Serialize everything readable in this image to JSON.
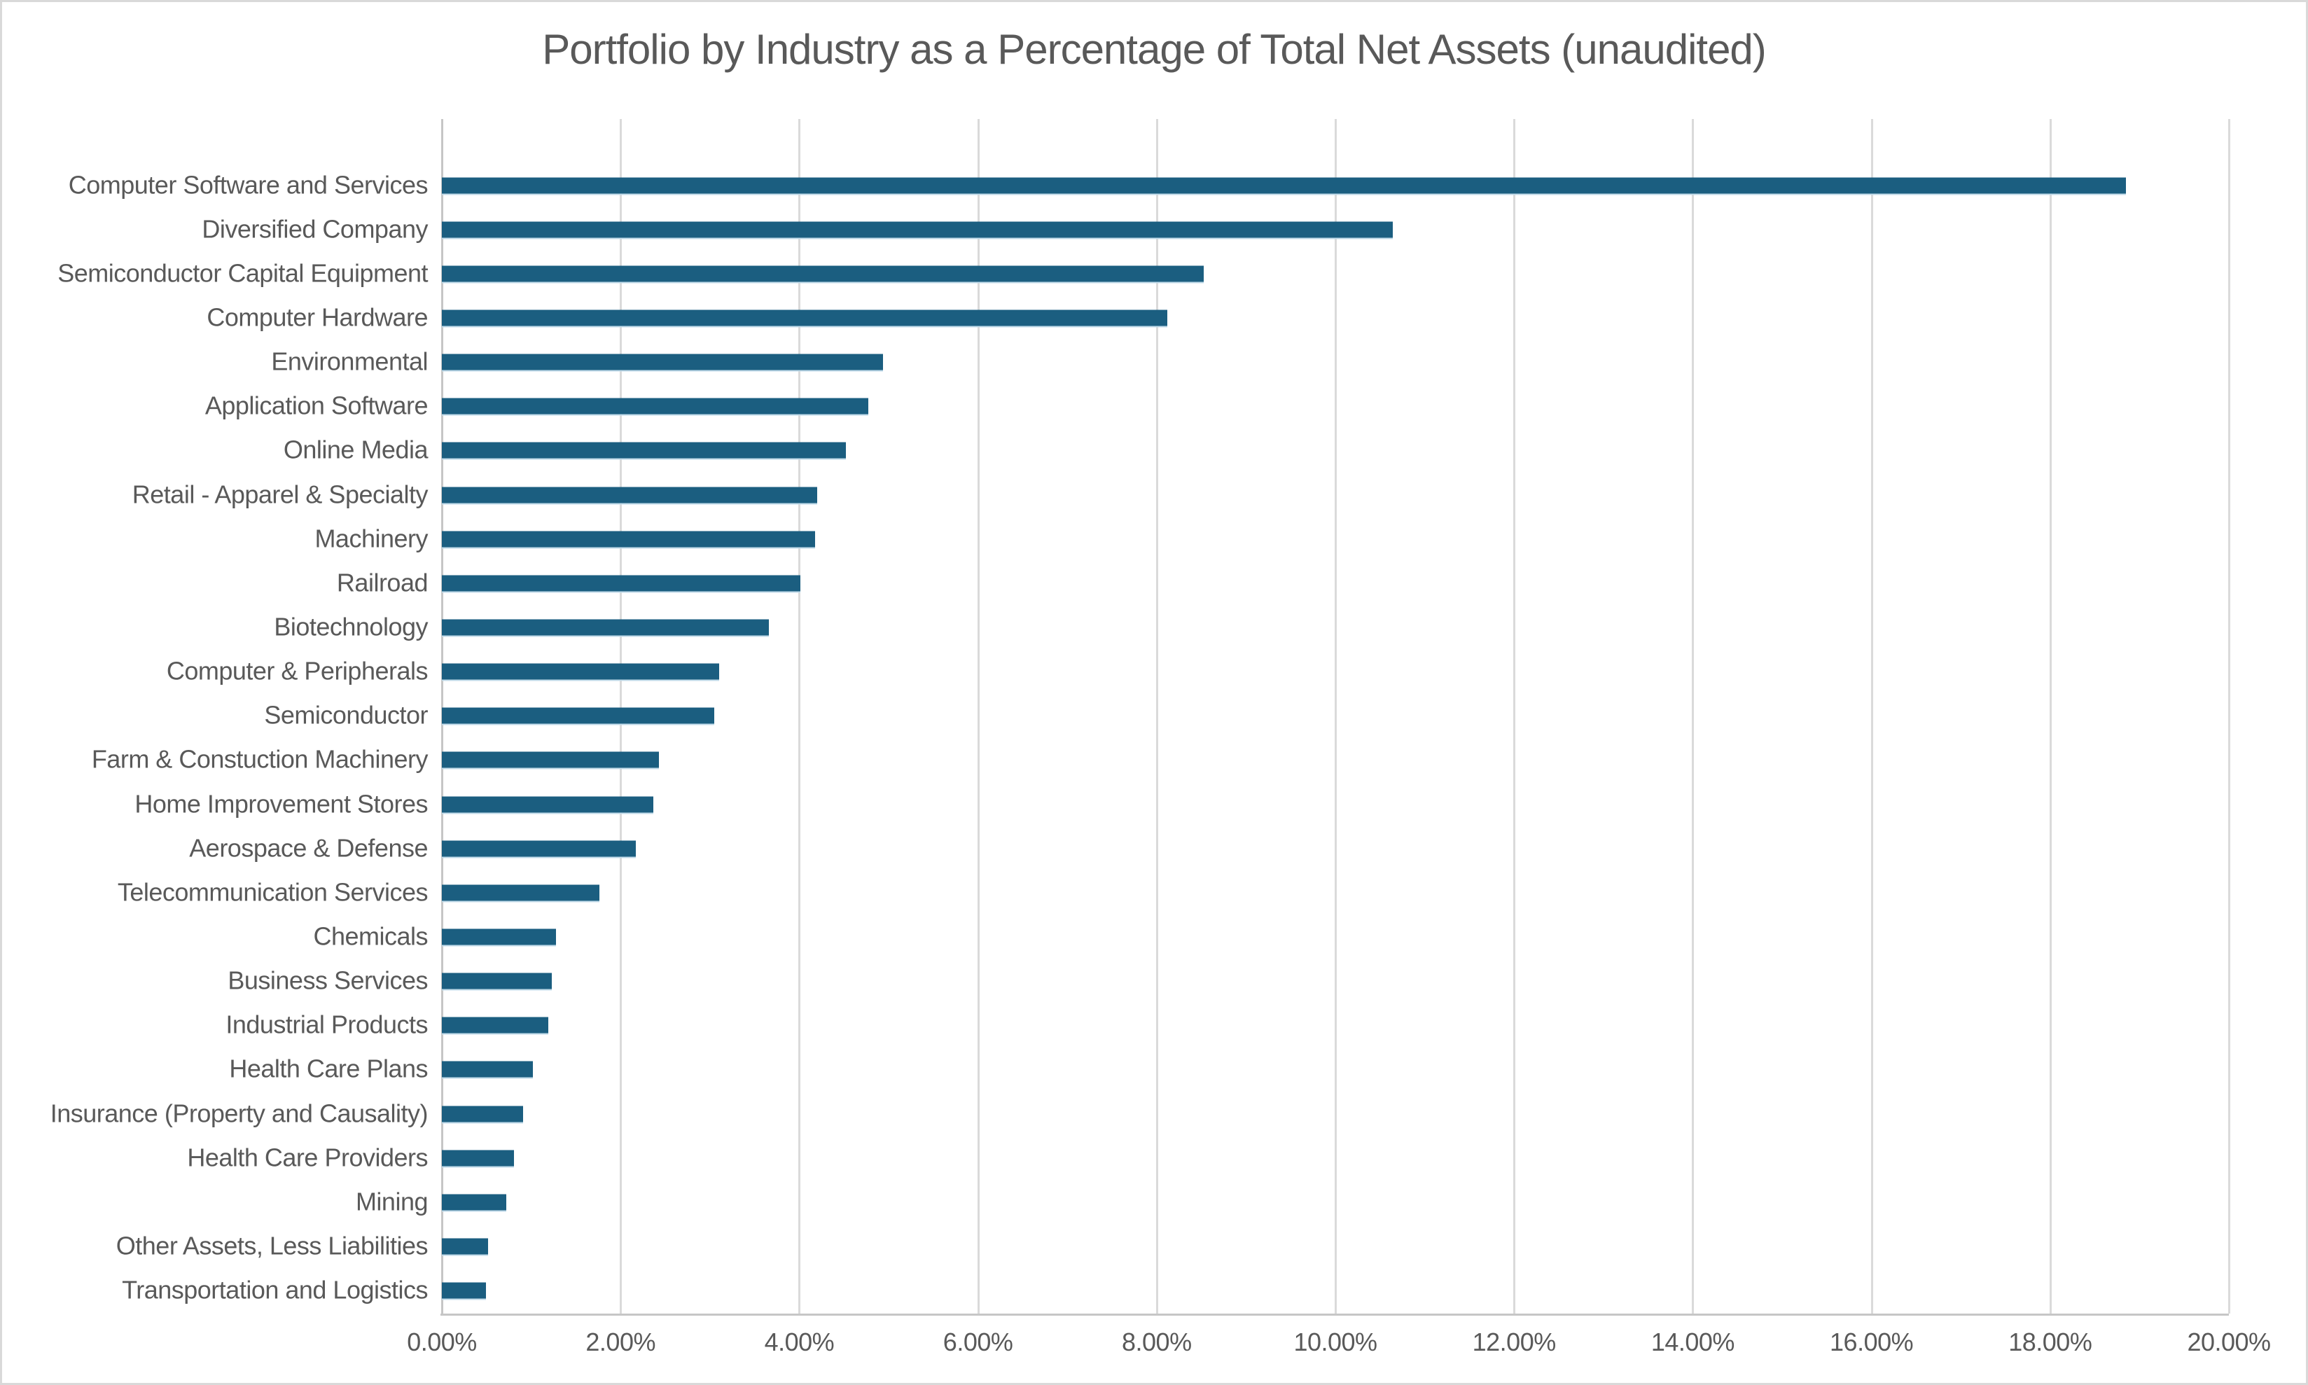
{
  "chart": {
    "title": "Portfolio by Industry as a Percentage of Total Net Assets (unaudited)"
  },
  "chart_data": {
    "type": "bar",
    "orientation": "horizontal",
    "title": "Portfolio by Industry as a Percentage of Total Net Assets (unaudited)",
    "categories": [
      "Computer Software and Services",
      "Diversified Company",
      "Semiconductor Capital Equipment",
      "Computer Hardware",
      "Environmental",
      "Application Software",
      "Online Media",
      "Retail - Apparel & Specialty",
      "Machinery",
      "Railroad",
      "Biotechnology",
      "Computer & Peripherals",
      "Semiconductor",
      "Farm & Constuction Machinery",
      "Home Improvement Stores",
      "Aerospace & Defense",
      "Telecommunication Services",
      "Chemicals",
      "Business Services",
      "Industrial Products",
      "Health Care Plans",
      "Insurance (Property and Causality)",
      "Health Care Providers",
      "Mining",
      "Other Assets, Less Liabilities",
      "Transportation and Logistics"
    ],
    "values": [
      18.85,
      10.64,
      8.53,
      8.12,
      4.94,
      4.77,
      4.52,
      4.2,
      4.18,
      4.01,
      3.66,
      3.1,
      3.05,
      2.43,
      2.37,
      2.17,
      1.76,
      1.28,
      1.23,
      1.19,
      1.02,
      0.91,
      0.81,
      0.72,
      0.52,
      0.49
    ],
    "value_unit": "percent_of_total_net_assets",
    "xlabel": "",
    "ylabel": "",
    "xlim": [
      0,
      20
    ],
    "x_ticks": [
      "0.00%",
      "2.00%",
      "4.00%",
      "6.00%",
      "8.00%",
      "10.00%",
      "12.00%",
      "14.00%",
      "16.00%",
      "18.00%",
      "20.00%"
    ],
    "x_tick_values": [
      0,
      2,
      4,
      6,
      8,
      10,
      12,
      14,
      16,
      18,
      20
    ],
    "grid": "vertical",
    "legend": "none",
    "colors": {
      "bar": "#1b5e80",
      "bar_edge": "#bfd9e8",
      "gridline": "#dadada",
      "axis_line": "#c6c6c6",
      "text": "#595959",
      "background": "#ffffff",
      "frame_border": "#d9d9d9"
    }
  }
}
